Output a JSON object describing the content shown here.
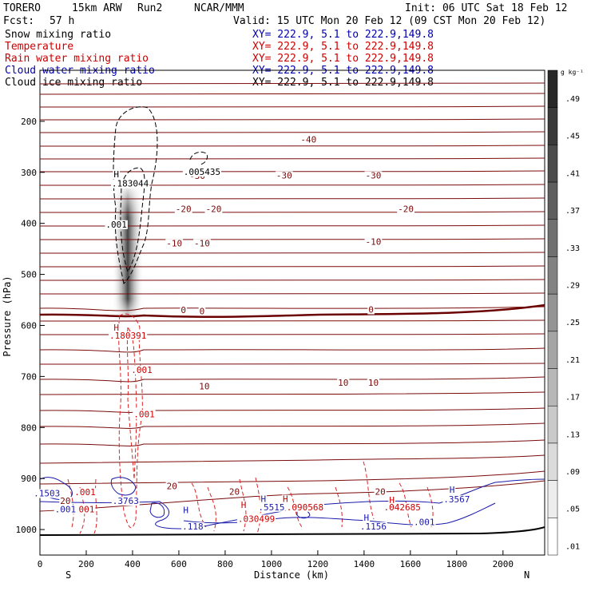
{
  "header": {
    "model": "TORERO",
    "resolution": "15km ARW",
    "run": "Run2",
    "org": "NCAR/MMM",
    "init": "Init: 06 UTC Sat 18 Feb 12",
    "fcst_label": "Fcst:",
    "fcst_value": "57 h",
    "valid": "Valid: 15 UTC Mon 20 Feb 12 (09 CST Mon 20 Feb 12)"
  },
  "legend": [
    {
      "name": "Snow mixing ratio",
      "color": "#000000",
      "xy": "XY= 222.9,  5.1 to 222.9,149.8"
    },
    {
      "name": "Temperature",
      "color": "#cc0000",
      "xy": "XY= 222.9,  5.1 to 222.9,149.8"
    },
    {
      "name": "Rain water mixing ratio",
      "color": "#cc0000",
      "xy": "XY= 222.9,  5.1 to 222.9,149.8"
    },
    {
      "name": "Cloud water mixing ratio",
      "color": "#0000aa",
      "xy": "XY= 222.9,  5.1 to 222.9,149.8"
    },
    {
      "name": "Cloud ice mixing ratio",
      "color": "#000000",
      "xy": "XY= 222.9,  5.1 to 222.9,149.8"
    }
  ],
  "chart_data": {
    "type": "cross-section",
    "xlabel": "Distance (km)",
    "ylabel": "Pressure (hPa)",
    "xlim": [
      0,
      2180
    ],
    "ylim": [
      1050,
      100
    ],
    "x_ticks": [
      0,
      200,
      400,
      600,
      800,
      1000,
      1200,
      1400,
      1600,
      1800,
      2000
    ],
    "y_ticks": [
      200,
      300,
      400,
      500,
      600,
      700,
      800,
      900,
      1000
    ],
    "left_end_label": "S",
    "right_end_label": "N",
    "colorbar": {
      "unit": "g kg⁻¹",
      "ticks": [
        ".49",
        ".45",
        ".41",
        ".37",
        ".33",
        ".29",
        ".25",
        ".21",
        ".17",
        ".13",
        ".09",
        ".05",
        ".01"
      ]
    },
    "temperature_labels": [
      {
        "text": "-40",
        "x": 1160,
        "p": 242
      },
      {
        "text": "-30",
        "x": 680,
        "p": 313
      },
      {
        "text": "-30",
        "x": 1055,
        "p": 312
      },
      {
        "text": "-30",
        "x": 1440,
        "p": 312
      },
      {
        "text": "-20",
        "x": 620,
        "p": 378
      },
      {
        "text": "-20",
        "x": 750,
        "p": 378
      },
      {
        "text": "-20",
        "x": 1580,
        "p": 378
      },
      {
        "text": "-10",
        "x": 580,
        "p": 445
      },
      {
        "text": "-10",
        "x": 700,
        "p": 445
      },
      {
        "text": "-10",
        "x": 1440,
        "p": 442
      },
      {
        "text": "0",
        "x": 620,
        "p": 576
      },
      {
        "text": "0",
        "x": 700,
        "p": 578
      },
      {
        "text": "0",
        "x": 1430,
        "p": 575
      },
      {
        "text": "10",
        "x": 710,
        "p": 725
      },
      {
        "text": "10",
        "x": 1310,
        "p": 718
      },
      {
        "text": "10",
        "x": 1440,
        "p": 718
      },
      {
        "text": "20",
        "x": 570,
        "p": 921
      },
      {
        "text": "20",
        "x": 840,
        "p": 932
      },
      {
        "text": "20",
        "x": 1470,
        "p": 932
      },
      {
        "text": "20",
        "x": 110,
        "p": 950
      }
    ],
    "snow_labels": [
      {
        "text": "H",
        "x": 330,
        "p": 310
      },
      {
        "text": ".183044",
        "x": 390,
        "p": 328
      },
      {
        "text": ".001",
        "x": 330,
        "p": 408
      },
      {
        "text": ".005435",
        "x": 700,
        "p": 305
      }
    ],
    "rain_labels": [
      {
        "text": "H",
        "x": 330,
        "p": 610
      },
      {
        "text": ".180391",
        "x": 380,
        "p": 626
      },
      {
        "text": ".001",
        "x": 440,
        "p": 693
      },
      {
        "text": ".001",
        "x": 450,
        "p": 780
      },
      {
        "text": ".001",
        "x": 195,
        "p": 933
      },
      {
        "text": ".001",
        "x": 190,
        "p": 966
      },
      {
        "text": "H",
        "x": 1060,
        "p": 946
      },
      {
        "text": ".090568",
        "x": 1145,
        "p": 962
      },
      {
        "text": "H",
        "x": 880,
        "p": 958
      },
      {
        "text": ".030499",
        "x": 935,
        "p": 985
      },
      {
        "text": "H",
        "x": 1520,
        "p": 948
      },
      {
        "text": ".042685",
        "x": 1565,
        "p": 962
      }
    ],
    "cloud_labels": [
      {
        "text": ".1503",
        "x": 30,
        "p": 935
      },
      {
        "text": ".001",
        "x": 110,
        "p": 966
      },
      {
        "text": ".3763",
        "x": 370,
        "p": 950
      },
      {
        "text": "H",
        "x": 630,
        "p": 968
      },
      {
        "text": ".118",
        "x": 660,
        "p": 1000
      },
      {
        "text": "H",
        "x": 965,
        "p": 946
      },
      {
        "text": ".5515",
        "x": 1000,
        "p": 962
      },
      {
        "text": "H",
        "x": 1410,
        "p": 983
      },
      {
        "text": ".1156",
        "x": 1440,
        "p": 1000
      },
      {
        "text": ".001",
        "x": 1660,
        "p": 991
      },
      {
        "text": "H",
        "x": 1780,
        "p": 928
      },
      {
        "text": ".3567",
        "x": 1800,
        "p": 947
      }
    ]
  }
}
